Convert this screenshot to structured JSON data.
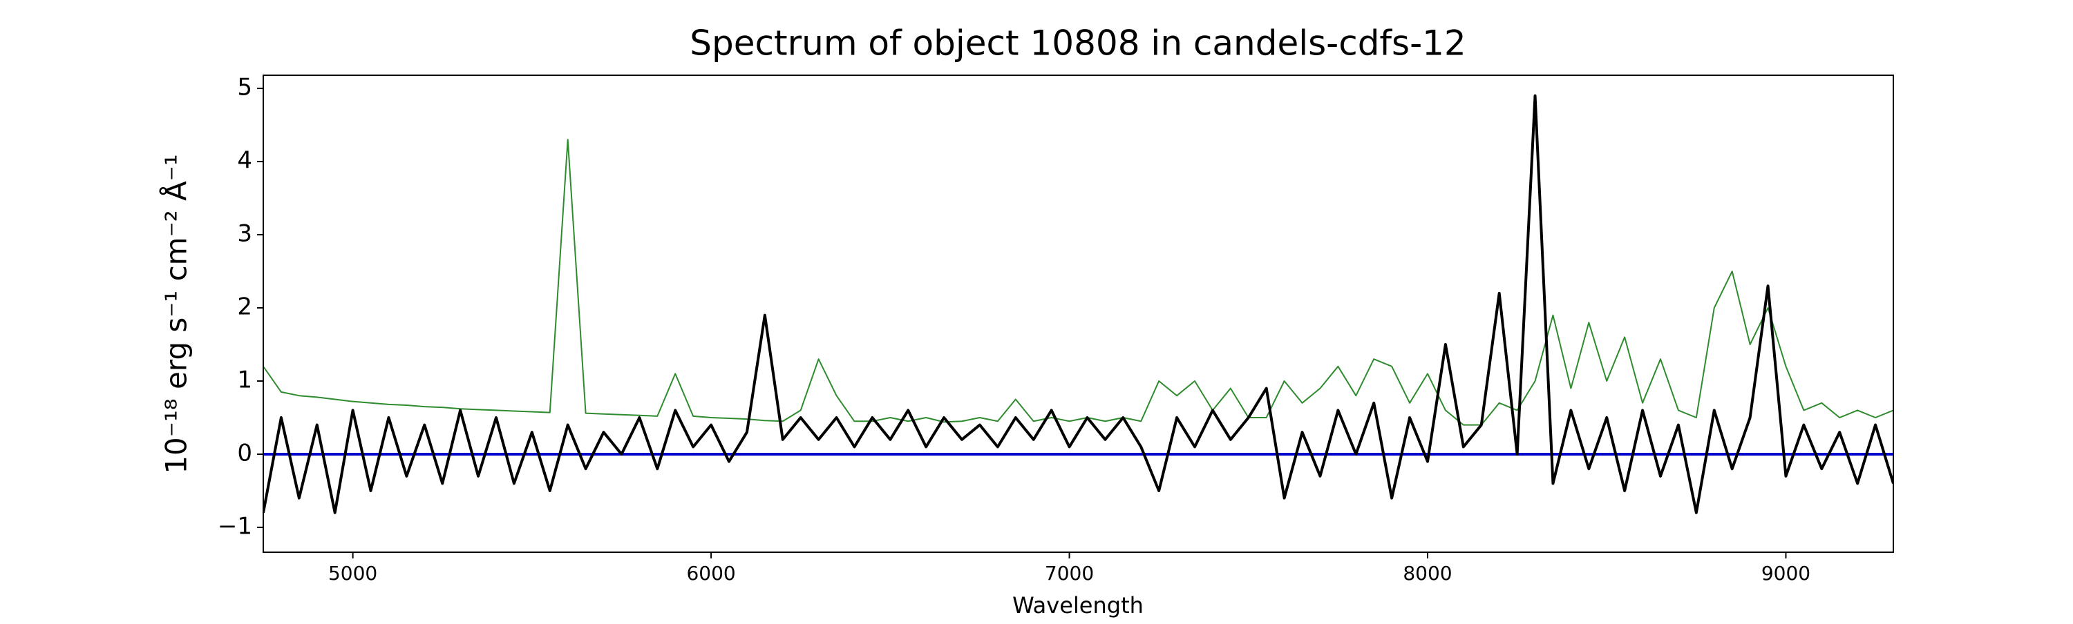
{
  "chart_data": {
    "type": "line",
    "title": "Spectrum of object 10808 in candels-cdfs-12",
    "x_label": "Wavelength",
    "y_label": "10⁻¹⁸ erg s⁻¹ cm⁻² Å⁻¹",
    "xlim": [
      4750,
      9300
    ],
    "ylim": [
      -1.34,
      5.18
    ],
    "xticks": [
      5000,
      6000,
      7000,
      8000,
      9000
    ],
    "yticks": [
      {
        "value": -1,
        "label": "−1"
      },
      0,
      1,
      2,
      3,
      4,
      5
    ],
    "grid": false,
    "x": [
      4750,
      4800,
      4850,
      4900,
      4950,
      5000,
      5050,
      5100,
      5150,
      5200,
      5250,
      5300,
      5350,
      5400,
      5450,
      5500,
      5550,
      5600,
      5650,
      5700,
      5750,
      5800,
      5850,
      5900,
      5950,
      6000,
      6050,
      6100,
      6150,
      6200,
      6250,
      6300,
      6350,
      6400,
      6450,
      6500,
      6550,
      6600,
      6650,
      6700,
      6750,
      6800,
      6850,
      6900,
      6950,
      7000,
      7050,
      7100,
      7150,
      7200,
      7250,
      7300,
      7350,
      7400,
      7450,
      7500,
      7550,
      7600,
      7650,
      7700,
      7750,
      7800,
      7850,
      7900,
      7950,
      8000,
      8050,
      8100,
      8150,
      8200,
      8250,
      8300,
      8350,
      8400,
      8450,
      8500,
      8550,
      8600,
      8650,
      8700,
      8750,
      8800,
      8850,
      8900,
      8950,
      9000,
      9050,
      9100,
      9150,
      9200,
      9250,
      9300
    ],
    "series": [
      {
        "color": "#2e8b2e",
        "width": 2,
        "values": [
          1.2,
          0.85,
          0.8,
          0.78,
          0.75,
          0.72,
          0.7,
          0.68,
          0.67,
          0.65,
          0.64,
          0.62,
          0.61,
          0.6,
          0.59,
          0.58,
          0.57,
          4.3,
          0.56,
          0.55,
          0.54,
          0.53,
          0.52,
          1.1,
          0.52,
          0.5,
          0.49,
          0.48,
          0.46,
          0.45,
          0.6,
          1.3,
          0.8,
          0.45,
          0.45,
          0.5,
          0.45,
          0.5,
          0.44,
          0.45,
          0.5,
          0.45,
          0.75,
          0.45,
          0.5,
          0.45,
          0.5,
          0.45,
          0.5,
          0.45,
          1.0,
          0.8,
          1.0,
          0.6,
          0.9,
          0.5,
          0.5,
          1.0,
          0.7,
          0.9,
          1.2,
          0.8,
          1.3,
          1.2,
          0.7,
          1.1,
          0.6,
          0.4,
          0.4,
          0.7,
          0.6,
          1.0,
          1.9,
          0.9,
          1.8,
          1.0,
          1.6,
          0.7,
          1.3,
          0.6,
          0.5,
          2.0,
          2.5,
          1.5,
          2.0,
          1.2,
          0.6,
          0.7,
          0.5,
          0.6,
          0.5,
          0.6
        ]
      },
      {
        "color": "#0000cc",
        "width": 4,
        "x": [
          4750,
          9300
        ],
        "values": [
          0,
          0
        ]
      },
      {
        "color": "#000000",
        "width": 4,
        "values": [
          -0.8,
          0.5,
          -0.6,
          0.4,
          -0.8,
          0.6,
          -0.5,
          0.5,
          -0.3,
          0.4,
          -0.4,
          0.6,
          -0.3,
          0.5,
          -0.4,
          0.3,
          -0.5,
          0.4,
          -0.2,
          0.3,
          0.0,
          0.5,
          -0.2,
          0.6,
          0.1,
          0.4,
          -0.1,
          0.3,
          1.9,
          0.2,
          0.5,
          0.2,
          0.5,
          0.1,
          0.5,
          0.2,
          0.6,
          0.1,
          0.5,
          0.2,
          0.4,
          0.1,
          0.5,
          0.2,
          0.6,
          0.1,
          0.5,
          0.2,
          0.5,
          0.1,
          -0.5,
          0.5,
          0.1,
          0.6,
          0.2,
          0.5,
          0.9,
          -0.6,
          0.3,
          -0.3,
          0.6,
          0.0,
          0.7,
          -0.6,
          0.5,
          -0.1,
          1.5,
          0.1,
          0.4,
          2.2,
          0.0,
          4.9,
          -0.4,
          0.6,
          -0.2,
          0.5,
          -0.5,
          0.6,
          -0.3,
          0.4,
          -0.8,
          0.6,
          -0.2,
          0.5,
          2.3,
          -0.3,
          0.4,
          -0.2,
          0.3,
          -0.4,
          0.4,
          -0.4
        ]
      }
    ]
  }
}
